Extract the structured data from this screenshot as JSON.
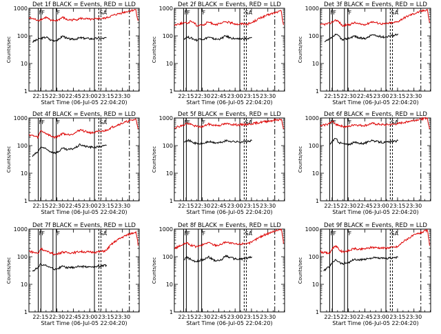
{
  "figure": {
    "xlabel": "Start Time (06-Jul-05 22:04:20)",
    "ylabel": "Counts/sec",
    "x_ticks": [
      "22:15",
      "22:30",
      "22:45",
      "23:00",
      "23:15",
      "23:30"
    ],
    "y_ticks": [
      "1",
      "10",
      "100",
      "1000"
    ],
    "flag_labels": [
      "F",
      "F",
      "F",
      "SA"
    ],
    "colors": {
      "black_series": "#000000",
      "red_series": "#dd0000",
      "axes": "#000000"
    }
  },
  "chart_data": [
    {
      "type": "line",
      "title": "Det 1f BLACK = Events, RED = LLD",
      "xlabel": "Start Time (06-Jul-05 22:04:20)",
      "ylabel": "Counts/sec",
      "x_units": "minutes after 22:04:20",
      "xlim": [
        0,
        101
      ],
      "ylim": [
        1,
        1000
      ],
      "yscale": "log",
      "xticks": [
        "22:15",
        "22:30",
        "22:45",
        "23:00",
        "23:15",
        "23:30"
      ],
      "series": [
        {
          "name": "Events",
          "x": [
            3,
            8.5,
            10,
            13,
            16,
            20,
            24,
            27,
            31,
            35,
            39,
            43,
            47,
            51,
            55,
            59,
            63,
            67,
            71
          ],
          "y": [
            60,
            75,
            80,
            85,
            90,
            70,
            68,
            72,
            100,
            80,
            75,
            78,
            85,
            82,
            80,
            78,
            82,
            80,
            85
          ]
        },
        {
          "name": "LLD",
          "x": [
            0,
            8.5,
            10,
            13,
            16,
            20,
            24,
            27,
            31,
            35,
            39,
            43,
            47,
            51,
            55,
            59,
            63,
            67,
            71,
            98,
            99,
            100
          ],
          "y": [
            450,
            370,
            380,
            420,
            480,
            350,
            360,
            380,
            470,
            380,
            380,
            390,
            430,
            420,
            400,
            390,
            430,
            420,
            450,
            900,
            500,
            350
          ]
        }
      ]
    },
    {
      "type": "line",
      "title": "Det 2f BLACK = Events, RED = LLD",
      "xlabel": "Start Time (06-Jul-05 22:04:20)",
      "ylabel": "Counts/sec",
      "x_units": "minutes after 22:04:20",
      "xlim": [
        0,
        101
      ],
      "ylim": [
        1,
        1000
      ],
      "yscale": "log",
      "xticks": [
        "22:15",
        "22:30",
        "22:45",
        "23:00",
        "23:15",
        "23:30"
      ],
      "series": [
        {
          "name": "Events",
          "x": [
            9,
            12,
            15,
            18,
            21,
            24,
            27,
            31,
            35,
            39,
            43,
            47,
            51,
            55,
            59,
            63,
            67,
            71
          ],
          "y": [
            80,
            90,
            85,
            75,
            70,
            80,
            75,
            90,
            80,
            75,
            80,
            100,
            85,
            80,
            75,
            80,
            78,
            85
          ]
        },
        {
          "name": "LLD",
          "x": [
            0,
            9,
            12,
            15,
            18,
            21,
            24,
            27,
            31,
            35,
            39,
            43,
            47,
            51,
            55,
            59,
            63,
            67,
            71,
            98,
            99,
            100
          ],
          "y": [
            250,
            300,
            280,
            350,
            300,
            230,
            260,
            240,
            320,
            280,
            260,
            280,
            330,
            300,
            280,
            260,
            280,
            270,
            300,
            800,
            400,
            250
          ]
        }
      ]
    },
    {
      "type": "line",
      "title": "Det 3f BLACK = Events, RED = LLD",
      "xlabel": "Start Time (06-Jul-05 22:04:20)",
      "ylabel": "Counts/sec",
      "x_units": "minutes after 22:04:20",
      "xlim": [
        0,
        101
      ],
      "ylim": [
        1,
        1000
      ],
      "yscale": "log",
      "xticks": [
        "22:15",
        "22:30",
        "22:45",
        "23:00",
        "23:15",
        "23:30"
      ],
      "series": [
        {
          "name": "Events",
          "x": [
            4,
            8.5,
            11,
            14,
            17,
            20,
            24,
            27,
            31,
            35,
            39,
            43,
            47,
            51,
            55,
            59,
            63,
            67,
            71
          ],
          "y": [
            60,
            75,
            90,
            110,
            100,
            70,
            80,
            85,
            100,
            85,
            80,
            85,
            110,
            100,
            95,
            90,
            100,
            105,
            120
          ]
        },
        {
          "name": "LLD",
          "x": [
            0,
            8.5,
            11,
            14,
            17,
            20,
            24,
            27,
            31,
            35,
            39,
            43,
            47,
            51,
            55,
            59,
            63,
            67,
            71,
            98,
            99,
            100
          ],
          "y": [
            250,
            280,
            320,
            380,
            320,
            230,
            250,
            260,
            300,
            270,
            260,
            270,
            330,
            300,
            280,
            270,
            290,
            300,
            330,
            900,
            500,
            300
          ]
        }
      ]
    },
    {
      "type": "line",
      "title": "Det 4f BLACK = Events, RED = LLD",
      "xlabel": "Start Time (06-Jul-05 22:04:20)",
      "ylabel": "Counts/sec",
      "x_units": "minutes after 22:04:20",
      "xlim": [
        0,
        101
      ],
      "ylim": [
        1,
        1000
      ],
      "yscale": "log",
      "xticks": [
        "22:15",
        "22:30",
        "22:45",
        "23:00",
        "23:15",
        "23:30"
      ],
      "series": [
        {
          "name": "Events",
          "x": [
            3,
            8.5,
            11,
            14,
            17,
            20,
            24,
            27,
            31,
            35,
            39,
            43,
            47,
            51,
            55,
            59,
            63,
            67,
            71
          ],
          "y": [
            40,
            60,
            90,
            80,
            70,
            60,
            55,
            60,
            80,
            70,
            75,
            85,
            110,
            95,
            90,
            85,
            90,
            95,
            100
          ]
        },
        {
          "name": "LLD",
          "x": [
            0,
            8.5,
            11,
            14,
            17,
            20,
            24,
            27,
            31,
            35,
            39,
            43,
            47,
            51,
            55,
            59,
            63,
            67,
            71,
            98,
            99,
            100
          ],
          "y": [
            250,
            200,
            350,
            300,
            260,
            220,
            200,
            220,
            280,
            250,
            260,
            300,
            380,
            330,
            300,
            290,
            320,
            330,
            360,
            900,
            600,
            400
          ]
        }
      ]
    },
    {
      "type": "line",
      "title": "Det 5f BLACK = Events, RED = LLD",
      "xlabel": "Start Time (06-Jul-05 22:04:20)",
      "ylabel": "Counts/sec",
      "x_units": "minutes after 22:04:20",
      "xlim": [
        0,
        101
      ],
      "ylim": [
        1,
        1000
      ],
      "yscale": "log",
      "xticks": [
        "22:15",
        "22:30",
        "22:45",
        "23:00",
        "23:15",
        "23:30"
      ],
      "series": [
        {
          "name": "Events",
          "x": [
            9,
            11,
            14,
            17,
            20,
            24,
            27,
            31,
            35,
            39,
            43,
            47,
            51,
            55,
            59,
            63,
            67,
            71
          ],
          "y": [
            140,
            160,
            150,
            130,
            120,
            115,
            120,
            140,
            130,
            125,
            130,
            150,
            145,
            140,
            135,
            140,
            140,
            150
          ]
        },
        {
          "name": "LLD",
          "x": [
            0,
            9,
            11,
            14,
            17,
            20,
            24,
            27,
            31,
            35,
            39,
            43,
            47,
            51,
            55,
            59,
            63,
            67,
            71,
            98,
            99,
            100
          ],
          "y": [
            450,
            550,
            650,
            600,
            550,
            500,
            480,
            500,
            600,
            560,
            540,
            560,
            620,
            600,
            580,
            560,
            580,
            590,
            620,
            900,
            600,
            400
          ]
        }
      ]
    },
    {
      "type": "line",
      "title": "Det 6f BLACK = Events, RED = LLD",
      "xlabel": "Start Time (06-Jul-05 22:04:20)",
      "ylabel": "Counts/sec",
      "x_units": "minutes after 22:04:20",
      "xlim": [
        0,
        101
      ],
      "ylim": [
        1,
        1000
      ],
      "yscale": "log",
      "xticks": [
        "22:15",
        "22:30",
        "22:45",
        "23:00",
        "23:15",
        "23:30"
      ],
      "series": [
        {
          "name": "Events",
          "x": [
            9,
            11,
            14,
            17,
            20,
            24,
            27,
            31,
            35,
            39,
            43,
            47,
            51,
            55,
            59,
            63,
            67,
            71
          ],
          "y": [
            110,
            150,
            180,
            130,
            120,
            110,
            115,
            130,
            125,
            120,
            130,
            160,
            140,
            135,
            130,
            135,
            140,
            150
          ]
        },
        {
          "name": "LLD",
          "x": [
            0,
            9,
            11,
            14,
            17,
            20,
            24,
            27,
            31,
            35,
            39,
            43,
            47,
            51,
            55,
            59,
            63,
            67,
            71,
            98,
            99,
            100
          ],
          "y": [
            500,
            650,
            750,
            600,
            550,
            500,
            480,
            500,
            580,
            550,
            530,
            560,
            640,
            600,
            580,
            560,
            580,
            590,
            620,
            1000,
            600,
            400
          ]
        }
      ]
    },
    {
      "type": "line",
      "title": "Det 7f BLACK = Events, RED = LLD",
      "xlabel": "Start Time (06-Jul-05 22:04:20)",
      "ylabel": "Counts/sec",
      "x_units": "minutes after 22:04:20",
      "xlim": [
        0,
        101
      ],
      "ylim": [
        1,
        1000
      ],
      "yscale": "log",
      "xticks": [
        "22:15",
        "22:30",
        "22:45",
        "23:00",
        "23:15",
        "23:30"
      ],
      "series": [
        {
          "name": "Events",
          "x": [
            3,
            8.5,
            11,
            14,
            17,
            20,
            24,
            27,
            31,
            35,
            39,
            43,
            47,
            51,
            55,
            59,
            63,
            67,
            71
          ],
          "y": [
            30,
            40,
            55,
            50,
            45,
            40,
            35,
            38,
            45,
            40,
            40,
            42,
            45,
            44,
            43,
            42,
            45,
            46,
            50
          ]
        },
        {
          "name": "LLD",
          "x": [
            0,
            8.5,
            11,
            14,
            17,
            20,
            24,
            27,
            31,
            35,
            39,
            43,
            47,
            51,
            55,
            59,
            63,
            67,
            71,
            98,
            99,
            100
          ],
          "y": [
            160,
            130,
            200,
            170,
            150,
            140,
            120,
            130,
            150,
            140,
            140,
            145,
            155,
            150,
            148,
            145,
            150,
            155,
            170,
            800,
            500,
            250
          ]
        }
      ]
    },
    {
      "type": "line",
      "title": "Det 8f BLACK = Events, RED = LLD",
      "xlabel": "Start Time (06-Jul-05 22:04:20)",
      "ylabel": "Counts/sec",
      "x_units": "minutes after 22:04:20",
      "xlim": [
        0,
        101
      ],
      "ylim": [
        1,
        1000
      ],
      "yscale": "log",
      "xticks": [
        "22:15",
        "22:30",
        "22:45",
        "23:00",
        "23:15",
        "23:30"
      ],
      "series": [
        {
          "name": "Events",
          "x": [
            9,
            11,
            14,
            17,
            20,
            24,
            27,
            31,
            35,
            39,
            43,
            47,
            51,
            55,
            59,
            63,
            67,
            71
          ],
          "y": [
            80,
            95,
            85,
            70,
            65,
            75,
            80,
            100,
            80,
            70,
            75,
            110,
            95,
            85,
            80,
            85,
            90,
            100
          ]
        },
        {
          "name": "LLD",
          "x": [
            0,
            9,
            11,
            14,
            17,
            20,
            24,
            27,
            31,
            35,
            39,
            43,
            47,
            51,
            55,
            59,
            63,
            67,
            71,
            98,
            99,
            100
          ],
          "y": [
            200,
            280,
            320,
            270,
            250,
            230,
            250,
            280,
            330,
            280,
            260,
            280,
            350,
            310,
            290,
            280,
            300,
            310,
            330,
            1000,
            600,
            300
          ]
        }
      ]
    },
    {
      "type": "line",
      "title": "Det 9f BLACK = Events, RED = LLD",
      "xlabel": "Start Time (06-Jul-05 22:04:20)",
      "ylabel": "Counts/sec",
      "x_units": "minutes after 22:04:20",
      "xlim": [
        0,
        101
      ],
      "ylim": [
        1,
        1000
      ],
      "yscale": "log",
      "xticks": [
        "22:15",
        "22:30",
        "22:45",
        "23:00",
        "23:15",
        "23:30"
      ],
      "series": [
        {
          "name": "Events",
          "x": [
            3,
            8.5,
            11,
            14,
            17,
            20,
            24,
            27,
            31,
            35,
            39,
            43,
            47,
            51,
            55,
            59,
            63,
            67,
            71
          ],
          "y": [
            30,
            45,
            60,
            80,
            65,
            55,
            60,
            65,
            80,
            75,
            80,
            85,
            90,
            90,
            88,
            85,
            90,
            92,
            95
          ]
        },
        {
          "name": "LLD",
          "x": [
            0,
            8.5,
            11,
            14,
            17,
            20,
            24,
            27,
            31,
            35,
            39,
            43,
            47,
            51,
            55,
            59,
            63,
            67,
            71,
            98,
            99,
            100
          ],
          "y": [
            150,
            130,
            200,
            250,
            180,
            150,
            160,
            170,
            200,
            180,
            190,
            200,
            220,
            215,
            210,
            205,
            215,
            220,
            230,
            900,
            500,
            250
          ]
        }
      ]
    }
  ]
}
